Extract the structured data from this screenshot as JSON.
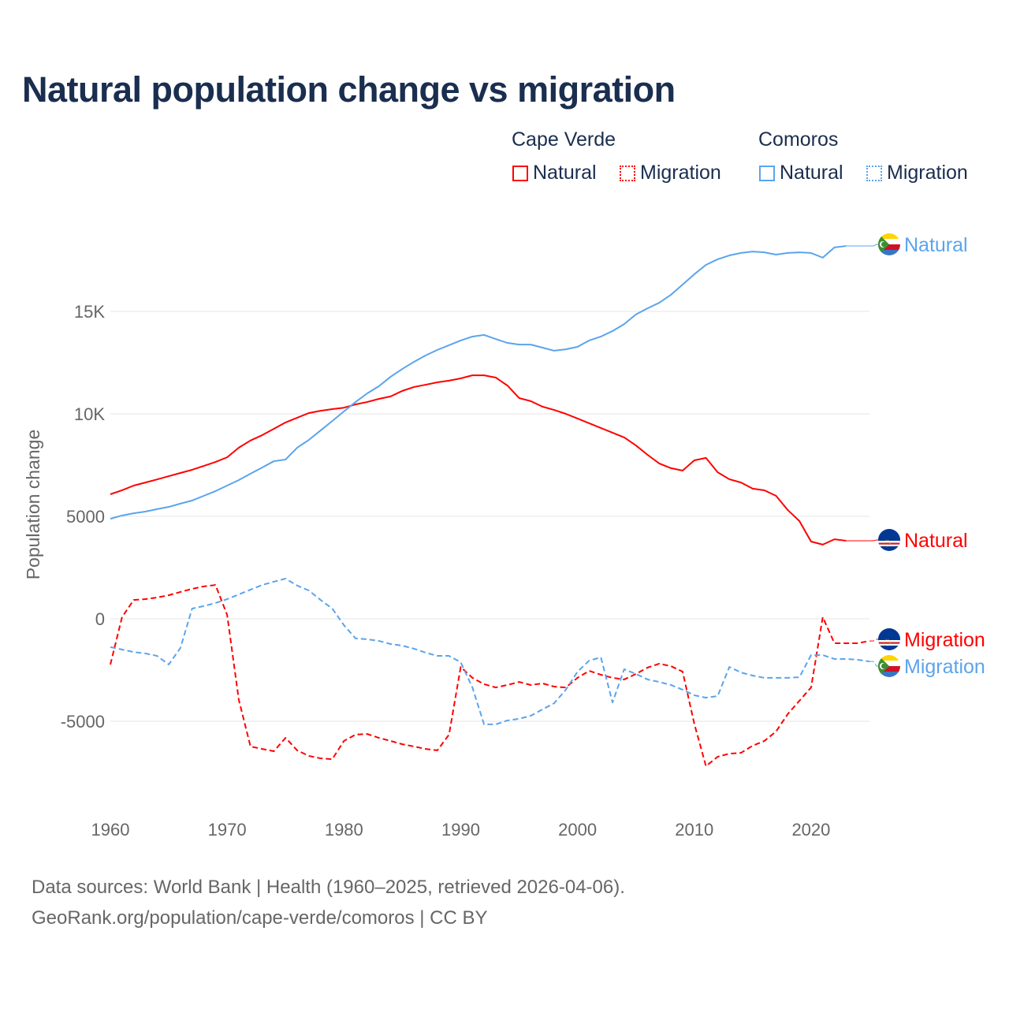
{
  "chart_data": {
    "type": "line",
    "title": "Natural population change vs migration",
    "xlabel": "",
    "ylabel": "Population change",
    "xlim": [
      1960,
      2025
    ],
    "ylim": [
      -8500,
      19500
    ],
    "grid": true,
    "x_ticks": [
      1960,
      1970,
      1980,
      1990,
      2000,
      2010,
      2020
    ],
    "x_tick_labels": [
      "1960",
      "1970",
      "1980",
      "1990",
      "2000",
      "2010",
      "2020"
    ],
    "y_ticks": [
      -5000,
      0,
      5000,
      10000,
      15000
    ],
    "y_tick_labels": [
      "-5000",
      "0",
      "5000",
      "10K",
      "15K"
    ],
    "legend": {
      "placement": "top-right",
      "groups": [
        {
          "name": "Cape Verde",
          "items": [
            "Natural",
            "Migration"
          ]
        },
        {
          "name": "Comoros",
          "items": [
            "Natural",
            "Migration"
          ]
        }
      ]
    },
    "start_year": 1960,
    "series": [
      {
        "country": "Cape Verde",
        "name": "Natural",
        "color": "#ff0000",
        "style": "solid",
        "end_label": "Natural",
        "values": [
          6077,
          6270,
          6500,
          6650,
          6800,
          6960,
          7115,
          7270,
          7460,
          7650,
          7880,
          8350,
          8700,
          8960,
          9270,
          9580,
          9810,
          10040,
          10150,
          10230,
          10300,
          10460,
          10580,
          10730,
          10850,
          11120,
          11310,
          11420,
          11540,
          11620,
          11730,
          11880,
          11880,
          11770,
          11380,
          10770,
          10620,
          10350,
          10190,
          10000,
          9770,
          9540,
          9310,
          9080,
          8850,
          8460,
          8000,
          7580,
          7350,
          7230,
          7730,
          7850,
          7150,
          6810,
          6650,
          6350,
          6270,
          6000,
          5310,
          4770,
          3770,
          3620,
          3880,
          3810
        ]
      },
      {
        "country": "Cape Verde",
        "name": "Migration",
        "color": "#ff0000",
        "style": "dashed",
        "end_label": "Migration",
        "values": [
          -2230,
          80,
          920,
          960,
          1040,
          1150,
          1310,
          1460,
          1580,
          1650,
          190,
          -3960,
          -6230,
          -6350,
          -6460,
          -5810,
          -6420,
          -6690,
          -6810,
          -6850,
          -5960,
          -5650,
          -5620,
          -5810,
          -5960,
          -6120,
          -6230,
          -6350,
          -6420,
          -5650,
          -2350,
          -2880,
          -3190,
          -3350,
          -3230,
          -3080,
          -3230,
          -3150,
          -3310,
          -3350,
          -2880,
          -2540,
          -2730,
          -2880,
          -2960,
          -2690,
          -2380,
          -2190,
          -2310,
          -2580,
          -5120,
          -7190,
          -6730,
          -6580,
          -6540,
          -6190,
          -5960,
          -5500,
          -4650,
          -4000,
          -3350,
          80,
          -1190,
          -1190,
          -1190,
          -1080
        ]
      },
      {
        "country": "Comoros",
        "name": "Natural",
        "color": "#5ba4ec",
        "style": "solid",
        "end_label": "Natural",
        "values": [
          4880,
          5040,
          5150,
          5230,
          5350,
          5460,
          5620,
          5770,
          6000,
          6230,
          6500,
          6770,
          7080,
          7380,
          7690,
          7770,
          8350,
          8730,
          9190,
          9650,
          10120,
          10580,
          11000,
          11350,
          11810,
          12190,
          12540,
          12850,
          13120,
          13350,
          13580,
          13770,
          13850,
          13650,
          13460,
          13380,
          13380,
          13230,
          13080,
          13150,
          13270,
          13580,
          13770,
          14040,
          14380,
          14850,
          15150,
          15420,
          15810,
          16310,
          16810,
          17270,
          17540,
          17730,
          17850,
          17920,
          17880,
          17770,
          17850,
          17880,
          17850,
          17620,
          18120,
          18190
        ]
      },
      {
        "country": "Comoros",
        "name": "Migration",
        "color": "#5ba4ec",
        "style": "dashed",
        "end_label": "Migration",
        "values": [
          -1380,
          -1500,
          -1620,
          -1690,
          -1810,
          -2230,
          -1420,
          500,
          620,
          770,
          960,
          1190,
          1420,
          1650,
          1810,
          1960,
          1620,
          1380,
          920,
          500,
          -310,
          -960,
          -1000,
          -1080,
          -1230,
          -1310,
          -1460,
          -1650,
          -1810,
          -1810,
          -2120,
          -3350,
          -5150,
          -5150,
          -4960,
          -4880,
          -4730,
          -4420,
          -4120,
          -3460,
          -2580,
          -2040,
          -1880,
          -4080,
          -2460,
          -2690,
          -2960,
          -3080,
          -3230,
          -3460,
          -3730,
          -3850,
          -3770,
          -2350,
          -2620,
          -2770,
          -2880,
          -2880,
          -2880,
          -2850,
          -1770,
          -1770,
          -1960,
          -1960,
          -2000,
          -2080
        ]
      }
    ]
  },
  "legend_labels": {
    "group1": "Cape Verde",
    "group2": "Comoros",
    "natural": "Natural",
    "migration": "Migration"
  },
  "footer": {
    "line1": "Data sources: World Bank | Health (1960–2025, retrieved 2026-04-06).",
    "line2": "GeoRank.org/population/cape-verde/comoros | CC BY"
  }
}
